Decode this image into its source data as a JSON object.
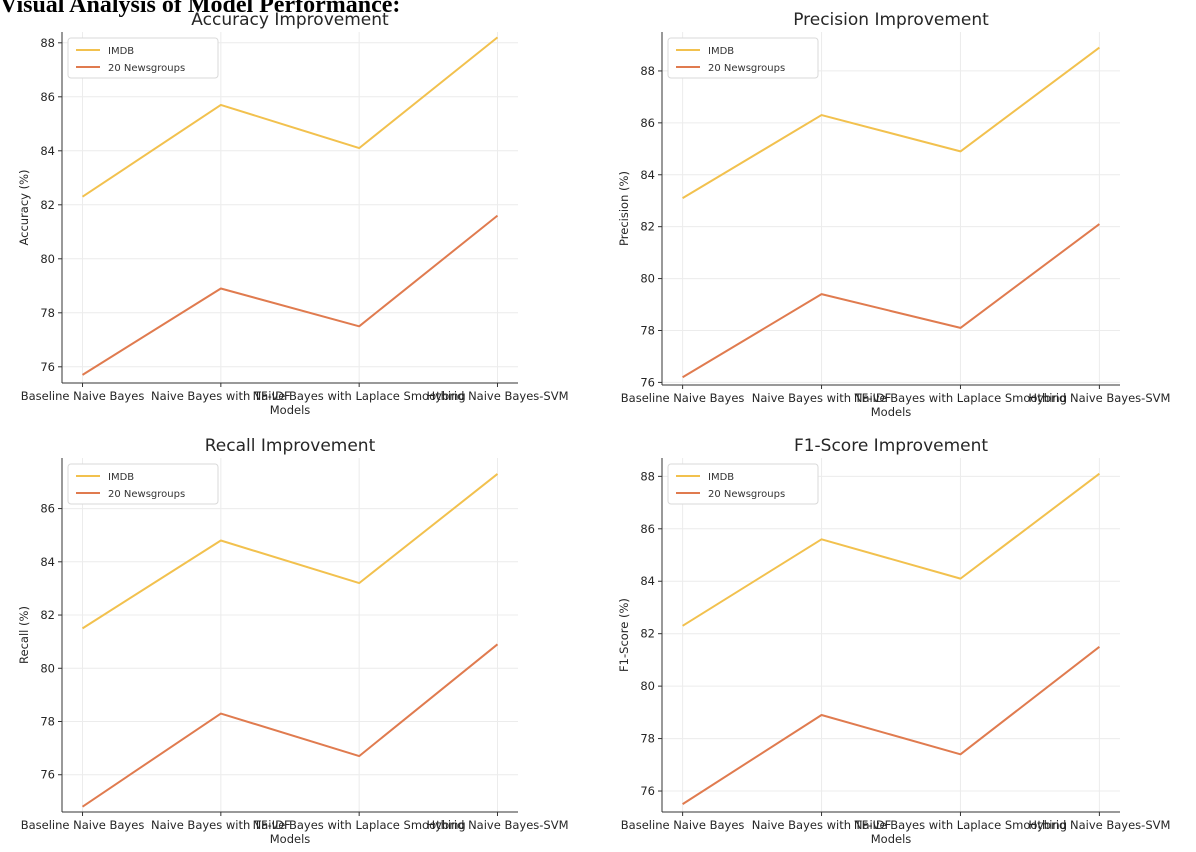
{
  "page_title": "Visual Analysis of Model Performance:",
  "chart_data": [
    {
      "type": "line",
      "title": "Accuracy Improvement",
      "xlabel": "Models",
      "ylabel": "Accuracy (%)",
      "categories": [
        "Baseline Naive Bayes",
        "Naive Bayes with TF-IDF",
        "Naive Bayes with Laplace Smoothing",
        "Hybrid Naive Bayes-SVM"
      ],
      "ylim": [
        75.4,
        88.4
      ],
      "yticks": [
        76,
        78,
        80,
        82,
        84,
        86,
        88
      ],
      "grid": true,
      "legend": "top-left",
      "series": [
        {
          "name": "IMDB",
          "color": "#f2c14e",
          "values": [
            82.3,
            85.7,
            84.1,
            88.2
          ]
        },
        {
          "name": "20 Newsgroups",
          "color": "#e07b4f",
          "values": [
            75.7,
            78.9,
            77.5,
            81.6
          ]
        }
      ]
    },
    {
      "type": "line",
      "title": "Precision Improvement",
      "xlabel": "Models",
      "ylabel": "Precision (%)",
      "categories": [
        "Baseline Naive Bayes",
        "Naive Bayes with TF-IDF",
        "Naive Bayes with Laplace Smoothing",
        "Hybrid Naive Bayes-SVM"
      ],
      "ylim": [
        75.9,
        89.5
      ],
      "yticks": [
        76,
        78,
        80,
        82,
        84,
        86,
        88
      ],
      "grid": true,
      "legend": "top-left",
      "series": [
        {
          "name": "IMDB",
          "color": "#f2c14e",
          "values": [
            83.1,
            86.3,
            84.9,
            88.9
          ]
        },
        {
          "name": "20 Newsgroups",
          "color": "#e07b4f",
          "values": [
            76.2,
            79.4,
            78.1,
            82.1
          ]
        }
      ]
    },
    {
      "type": "line",
      "title": "Recall Improvement",
      "xlabel": "Models",
      "ylabel": "Recall (%)",
      "categories": [
        "Baseline Naive Bayes",
        "Naive Bayes with TF-IDF",
        "Naive Bayes with Laplace Smoothing",
        "Hybrid Naive Bayes-SVM"
      ],
      "ylim": [
        74.6,
        87.9
      ],
      "yticks": [
        76,
        78,
        80,
        82,
        84,
        86
      ],
      "grid": true,
      "legend": "top-left",
      "series": [
        {
          "name": "IMDB",
          "color": "#f2c14e",
          "values": [
            81.5,
            84.8,
            83.2,
            87.3
          ]
        },
        {
          "name": "20 Newsgroups",
          "color": "#e07b4f",
          "values": [
            74.8,
            78.3,
            76.7,
            80.9
          ]
        }
      ]
    },
    {
      "type": "line",
      "title": "F1-Score Improvement",
      "xlabel": "Models",
      "ylabel": "F1-Score (%)",
      "categories": [
        "Baseline Naive Bayes",
        "Naive Bayes with TF-IDF",
        "Naive Bayes with Laplace Smoothing",
        "Hybrid Naive Bayes-SVM"
      ],
      "ylim": [
        75.2,
        88.7
      ],
      "yticks": [
        76,
        78,
        80,
        82,
        84,
        86,
        88
      ],
      "grid": true,
      "legend": "top-left",
      "series": [
        {
          "name": "IMDB",
          "color": "#f2c14e",
          "values": [
            82.3,
            85.6,
            84.1,
            88.1
          ]
        },
        {
          "name": "20 Newsgroups",
          "color": "#e07b4f",
          "values": [
            75.5,
            78.9,
            77.4,
            81.5
          ]
        }
      ]
    }
  ]
}
